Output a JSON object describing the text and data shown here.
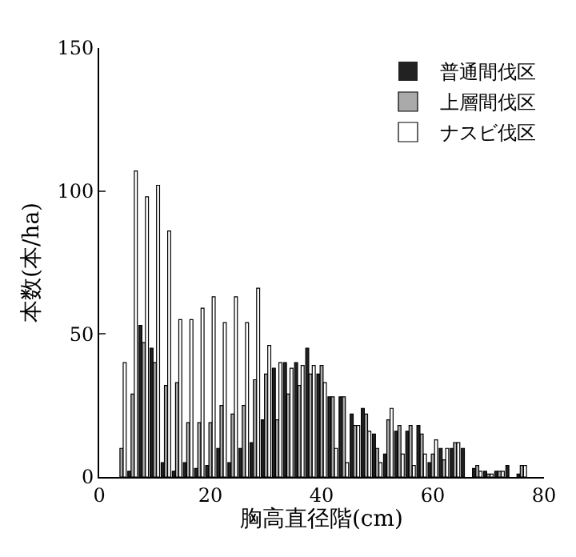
{
  "chart_data": {
    "type": "bar",
    "xlabel": "胸高直径階(cm)",
    "ylabel": "本数(本/ha)",
    "x": [
      4,
      6,
      8,
      10,
      12,
      14,
      16,
      18,
      20,
      22,
      24,
      26,
      28,
      30,
      32,
      34,
      36,
      38,
      40,
      42,
      44,
      46,
      48,
      50,
      52,
      54,
      56,
      58,
      60,
      62,
      64,
      66,
      68,
      70,
      72,
      74,
      76
    ],
    "series": [
      {
        "name": "普通間伐区",
        "color": "#222222",
        "values": [
          0,
          2,
          53,
          45,
          5,
          2,
          5,
          3,
          4,
          10,
          5,
          10,
          12,
          20,
          38,
          40,
          40,
          45,
          36,
          28,
          28,
          22,
          24,
          15,
          8,
          16,
          16,
          18,
          5,
          10,
          10,
          10,
          3,
          2,
          2,
          4,
          1
        ]
      },
      {
        "name": "上層間伐区",
        "color": "#aaaaaa",
        "values": [
          10,
          29,
          47,
          40,
          32,
          33,
          19,
          19,
          19,
          25,
          22,
          25,
          34,
          36,
          20,
          29,
          32,
          36,
          39,
          28,
          28,
          18,
          22,
          10,
          20,
          18,
          18,
          15,
          8,
          6,
          12,
          0,
          4,
          1,
          2,
          0,
          4
        ]
      },
      {
        "name": "ナスビ伐区",
        "color": "#ffffff",
        "values": [
          40,
          107,
          98,
          102,
          86,
          55,
          55,
          59,
          63,
          54,
          63,
          54,
          66,
          46,
          40,
          38,
          39,
          39,
          33,
          10,
          5,
          18,
          16,
          5,
          24,
          8,
          4,
          8,
          13,
          10,
          12,
          0,
          2,
          1,
          2,
          0,
          4
        ]
      }
    ],
    "xlim": [
      0,
      80
    ],
    "xticks": [
      0,
      20,
      40,
      60,
      80
    ],
    "ylim": [
      0,
      150
    ],
    "yticks": [
      0,
      50,
      100,
      150
    ],
    "grid": false,
    "legend": "top right"
  }
}
